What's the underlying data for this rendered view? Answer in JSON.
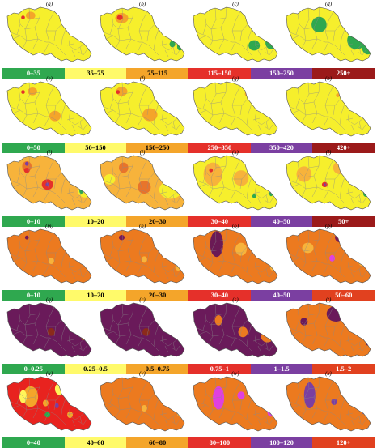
{
  "rows": [
    {
      "panels": [
        {
          "label": "(a)",
          "base": "#f6ef2c",
          "overlays": [
            [
              "#f4a52a",
              0.3,
              0.24,
              0.05,
              0.06
            ],
            [
              "#e5302a",
              0.22,
              0.27,
              0.02,
              0.03
            ],
            [
              "#2fa84f",
              0.9,
              0.62,
              0.04,
              0.06
            ],
            [
              "#2fa84f",
              0.94,
              0.74,
              0.03,
              0.05
            ]
          ]
        },
        {
          "label": "(b)",
          "base": "#f6ef2c",
          "overlays": [
            [
              "#f4a52a",
              0.28,
              0.28,
              0.07,
              0.08
            ],
            [
              "#e5302a",
              0.26,
              0.27,
              0.03,
              0.04
            ],
            [
              "#2fa84f",
              0.82,
              0.68,
              0.03,
              0.05
            ],
            [
              "#2fa84f",
              0.9,
              0.72,
              0.03,
              0.06
            ]
          ]
        },
        {
          "label": "(c)",
          "base": "#f6ef2c",
          "overlays": [
            [
              "#2fa84f",
              0.7,
              0.7,
              0.06,
              0.08
            ],
            [
              "#2fa84f",
              0.88,
              0.66,
              0.06,
              0.1
            ],
            [
              "#2fa84f",
              0.62,
              0.18,
              0.02,
              0.04
            ]
          ]
        },
        {
          "label": "(d)",
          "base": "#f6ef2c",
          "overlays": [
            [
              "#2fa84f",
              0.4,
              0.38,
              0.08,
              0.12
            ],
            [
              "#2fa84f",
              0.8,
              0.62,
              0.1,
              0.14
            ],
            [
              "#2fa84f",
              0.92,
              0.74,
              0.06,
              0.1
            ],
            [
              "#2fa84f",
              0.63,
              0.18,
              0.02,
              0.04
            ]
          ]
        }
      ],
      "legend": [
        {
          "text": "0–35",
          "bg": "#2fa84f",
          "fg": "#ffffff"
        },
        {
          "text": "35–75",
          "bg": "#fffa6a",
          "fg": "#000000"
        },
        {
          "text": "75–115",
          "bg": "#f4a52a",
          "fg": "#000000"
        },
        {
          "text": "115–150",
          "bg": "#e5302a",
          "fg": "#ffffff"
        },
        {
          "text": "150–250",
          "bg": "#7b3fa1",
          "fg": "#ffffff"
        },
        {
          "text": "250+",
          "bg": "#9b1a1a",
          "fg": "#ffffff"
        }
      ]
    },
    {
      "panels": [
        {
          "label": "(e)",
          "base": "#f6ef2c",
          "overlays": [
            [
              "#f4a52a",
              0.32,
              0.26,
              0.05,
              0.06
            ],
            [
              "#f4a52a",
              0.56,
              0.64,
              0.06,
              0.08
            ],
            [
              "#e5302a",
              0.22,
              0.27,
              0.02,
              0.03
            ]
          ]
        },
        {
          "label": "(f)",
          "base": "#f6ef2c",
          "overlays": [
            [
              "#f4a52a",
              0.28,
              0.26,
              0.06,
              0.07
            ],
            [
              "#f4a52a",
              0.58,
              0.62,
              0.08,
              0.1
            ],
            [
              "#e5302a",
              0.24,
              0.27,
              0.02,
              0.03
            ]
          ]
        },
        {
          "label": "(g)",
          "base": "#f6ef2c",
          "overlays": [
            [
              "#f4a52a",
              0.62,
              0.3,
              0.02,
              0.03
            ]
          ]
        },
        {
          "label": "(h)",
          "base": "#f6ef2c",
          "overlays": [
            [
              "#2fa84f",
              0.82,
              0.42,
              0.03,
              0.05
            ],
            [
              "#f4a52a",
              0.6,
              0.32,
              0.02,
              0.03
            ]
          ]
        }
      ],
      "legend": [
        {
          "text": "0–50",
          "bg": "#2fa84f",
          "fg": "#ffffff"
        },
        {
          "text": "50–150",
          "bg": "#fffa6a",
          "fg": "#000000"
        },
        {
          "text": "150–250",
          "bg": "#f4a52a",
          "fg": "#000000"
        },
        {
          "text": "250–350",
          "bg": "#e5302a",
          "fg": "#ffffff"
        },
        {
          "text": "350–420",
          "bg": "#7b3fa1",
          "fg": "#ffffff"
        },
        {
          "text": "420+",
          "bg": "#9b1a1a",
          "fg": "#ffffff"
        }
      ]
    },
    {
      "panels": [
        {
          "label": "(i)",
          "base": "#f7b33b",
          "overlays": [
            [
              "#e8742b",
              0.26,
              0.28,
              0.05,
              0.08
            ],
            [
              "#e5302a",
              0.26,
              0.34,
              0.03,
              0.04
            ],
            [
              "#7b3fa1",
              0.26,
              0.24,
              0.02,
              0.03
            ],
            [
              "#e5302a",
              0.48,
              0.56,
              0.06,
              0.08
            ],
            [
              "#7b3fa1",
              0.48,
              0.56,
              0.02,
              0.03
            ],
            [
              "#f6ef2c",
              0.88,
              0.64,
              0.08,
              0.12
            ],
            [
              "#2fa84f",
              0.84,
              0.66,
              0.02,
              0.04
            ]
          ]
        },
        {
          "label": "(j)",
          "base": "#f7b33b",
          "overlays": [
            [
              "#e8742b",
              0.3,
              0.3,
              0.05,
              0.08
            ],
            [
              "#e8742b",
              0.52,
              0.6,
              0.07,
              0.1
            ],
            [
              "#f6ef2c",
              0.8,
              0.64,
              0.12,
              0.14
            ],
            [
              "#f6ef2c",
              0.15,
              0.48,
              0.06,
              0.08
            ]
          ]
        },
        {
          "label": "(k)",
          "base": "#f6ef2c",
          "overlays": [
            [
              "#f7b33b",
              0.26,
              0.4,
              0.1,
              0.18
            ],
            [
              "#f7b33b",
              0.56,
              0.46,
              0.08,
              0.12
            ],
            [
              "#e5302a",
              0.24,
              0.34,
              0.02,
              0.03
            ],
            [
              "#2fa84f",
              0.7,
              0.74,
              0.02,
              0.03
            ],
            [
              "#2fa84f",
              0.88,
              0.7,
              0.02,
              0.04
            ]
          ]
        },
        {
          "label": "(l)",
          "base": "#f6ef2c",
          "overlays": [
            [
              "#f7b33b",
              0.24,
              0.4,
              0.08,
              0.12
            ],
            [
              "#f7b33b",
              0.62,
              0.3,
              0.07,
              0.1
            ],
            [
              "#e5302a",
              0.46,
              0.56,
              0.03,
              0.04
            ],
            [
              "#7b3fa1",
              0.46,
              0.56,
              0.012,
              0.02
            ],
            [
              "#2fa84f",
              0.6,
              0.16,
              0.02,
              0.03
            ],
            [
              "#2fa84f",
              0.9,
              0.7,
              0.03,
              0.05
            ]
          ]
        }
      ],
      "legend": [
        {
          "text": "0–10",
          "bg": "#2fa84f",
          "fg": "#ffffff"
        },
        {
          "text": "10–20",
          "bg": "#fffa6a",
          "fg": "#000000"
        },
        {
          "text": "20–30",
          "bg": "#f4a52a",
          "fg": "#000000"
        },
        {
          "text": "30–40",
          "bg": "#e5302a",
          "fg": "#ffffff"
        },
        {
          "text": "40–50",
          "bg": "#7b3fa1",
          "fg": "#ffffff"
        },
        {
          "text": "50+",
          "bg": "#9b1a1a",
          "fg": "#ffffff"
        }
      ]
    },
    {
      "panels": [
        {
          "label": "(m)",
          "base": "#ec7a1f",
          "overlays": [
            [
              "#7a1a55",
              0.26,
              0.24,
              0.02,
              0.03
            ],
            [
              "#f7b33b",
              0.52,
              0.6,
              0.03,
              0.05
            ],
            [
              "#f7b33b",
              0.92,
              0.7,
              0.03,
              0.05
            ]
          ]
        },
        {
          "label": "(n)",
          "base": "#ec7a1f",
          "overlays": [
            [
              "#7a1a55",
              0.28,
              0.24,
              0.03,
              0.04
            ],
            [
              "#f7b33b",
              0.52,
              0.58,
              0.03,
              0.05
            ],
            [
              "#f7b33b",
              0.88,
              0.7,
              0.03,
              0.05
            ]
          ]
        },
        {
          "label": "(o)",
          "base": "#ec7a1f",
          "overlays": [
            [
              "#6b1a55",
              0.3,
              0.34,
              0.07,
              0.2
            ],
            [
              "#f7b33b",
              0.56,
              0.42,
              0.06,
              0.1
            ],
            [
              "#f7b33b",
              0.9,
              0.7,
              0.03,
              0.05
            ]
          ]
        },
        {
          "label": "(p)",
          "base": "#ec7a1f",
          "overlays": [
            [
              "#7a1a55",
              0.64,
              0.24,
              0.07,
              0.08
            ],
            [
              "#e040e0",
              0.54,
              0.56,
              0.03,
              0.05
            ],
            [
              "#f7b33b",
              0.28,
              0.4,
              0.06,
              0.08
            ],
            [
              "#f7b33b",
              0.86,
              0.62,
              0.04,
              0.06
            ]
          ]
        }
      ],
      "legend": [
        {
          "text": "0–10",
          "bg": "#2fa84f",
          "fg": "#ffffff"
        },
        {
          "text": "10–20",
          "bg": "#fffa6a",
          "fg": "#000000"
        },
        {
          "text": "20–30",
          "bg": "#f4a52a",
          "fg": "#000000"
        },
        {
          "text": "30–40",
          "bg": "#e5302a",
          "fg": "#ffffff"
        },
        {
          "text": "40–50",
          "bg": "#7b3fa1",
          "fg": "#ffffff"
        },
        {
          "text": "50–60",
          "bg": "#e1411f",
          "fg": "#ffffff"
        }
      ]
    },
    {
      "panels": [
        {
          "label": "(q)",
          "base": "#6a1a5a",
          "overlays": [
            [
              "#8b2a1a",
              0.52,
              0.56,
              0.04,
              0.06
            ],
            [
              "#a05a2a",
              0.86,
              0.66,
              0.02,
              0.03
            ]
          ]
        },
        {
          "label": "(r)",
          "base": "#6a1a5a",
          "overlays": [
            [
              "#8b2a1a",
              0.54,
              0.56,
              0.04,
              0.06
            ]
          ]
        },
        {
          "label": "(s)",
          "base": "#6a1a5a",
          "overlays": [
            [
              "#ec7a1f",
              0.32,
              0.38,
              0.04,
              0.08
            ],
            [
              "#ec7a1f",
              0.58,
              0.56,
              0.05,
              0.08
            ],
            [
              "#ec7a1f",
              0.84,
              0.62,
              0.07,
              0.1
            ]
          ]
        },
        {
          "label": "(t)",
          "base": "#ec7a1f",
          "overlays": [
            [
              "#6a1a5a",
              0.58,
              0.28,
              0.1,
              0.12
            ],
            [
              "#6a1a5a",
              0.24,
              0.4,
              0.04,
              0.06
            ],
            [
              "#6a1a5a",
              0.92,
              0.74,
              0.02,
              0.03
            ]
          ]
        }
      ],
      "legend": [
        {
          "text": "0–0.25",
          "bg": "#2fa84f",
          "fg": "#ffffff"
        },
        {
          "text": "0.25–0.5",
          "bg": "#fffa6a",
          "fg": "#000000"
        },
        {
          "text": "0.5–0.75",
          "bg": "#f4a52a",
          "fg": "#000000"
        },
        {
          "text": "0.75–1",
          "bg": "#e5302a",
          "fg": "#ffffff"
        },
        {
          "text": "1–1.5",
          "bg": "#7b3fa1",
          "fg": "#ffffff"
        },
        {
          "text": "1.5–2",
          "bg": "#e1411f",
          "fg": "#ffffff"
        }
      ]
    },
    {
      "panels": [
        {
          "label": "(u)",
          "base": "#e8231f",
          "overlays": [
            [
              "#f4a52a",
              0.3,
              0.42,
              0.08,
              0.16
            ],
            [
              "#fff45a",
              0.22,
              0.42,
              0.04,
              0.1
            ],
            [
              "#fff45a",
              0.62,
              0.3,
              0.06,
              0.1
            ],
            [
              "#f4a52a",
              0.46,
              0.52,
              0.03,
              0.05
            ],
            [
              "#7b3fa1",
              0.58,
              0.56,
              0.02,
              0.04
            ],
            [
              "#2fa84f",
              0.48,
              0.7,
              0.03,
              0.04
            ],
            [
              "#7b3fa1",
              0.88,
              0.6,
              0.03,
              0.05
            ],
            [
              "#f4a52a",
              0.72,
              0.7,
              0.03,
              0.05
            ]
          ]
        },
        {
          "label": "(v)",
          "base": "#ec7a1f",
          "overlays": [
            [
              "#f7b33b",
              0.52,
              0.6,
              0.03,
              0.05
            ],
            [
              "#f7b33b",
              0.9,
              0.68,
              0.03,
              0.05
            ]
          ]
        },
        {
          "label": "(w)",
          "base": "#ec7a1f",
          "overlays": [
            [
              "#e040e0",
              0.32,
              0.44,
              0.06,
              0.18
            ],
            [
              "#e040e0",
              0.56,
              0.4,
              0.04,
              0.06
            ],
            [
              "#e040e0",
              0.88,
              0.66,
              0.04,
              0.07
            ]
          ]
        },
        {
          "label": "(x)",
          "base": "#ec7a1f",
          "overlays": [
            [
              "#7b3fa1",
              0.3,
              0.4,
              0.06,
              0.2
            ],
            [
              "#7b3fa1",
              0.56,
              0.5,
              0.03,
              0.05
            ],
            [
              "#7b3fa1",
              0.88,
              0.64,
              0.03,
              0.05
            ]
          ]
        }
      ],
      "legend": [
        {
          "text": "0–40",
          "bg": "#2fa84f",
          "fg": "#ffffff"
        },
        {
          "text": "40–60",
          "bg": "#fffa6a",
          "fg": "#000000"
        },
        {
          "text": "60–80",
          "bg": "#f4a52a",
          "fg": "#000000"
        },
        {
          "text": "80–100",
          "bg": "#e5302a",
          "fg": "#ffffff"
        },
        {
          "text": "100–120",
          "bg": "#7b3fa1",
          "fg": "#ffffff"
        },
        {
          "text": "120+",
          "bg": "#e1411f",
          "fg": "#ffffff"
        }
      ]
    }
  ]
}
